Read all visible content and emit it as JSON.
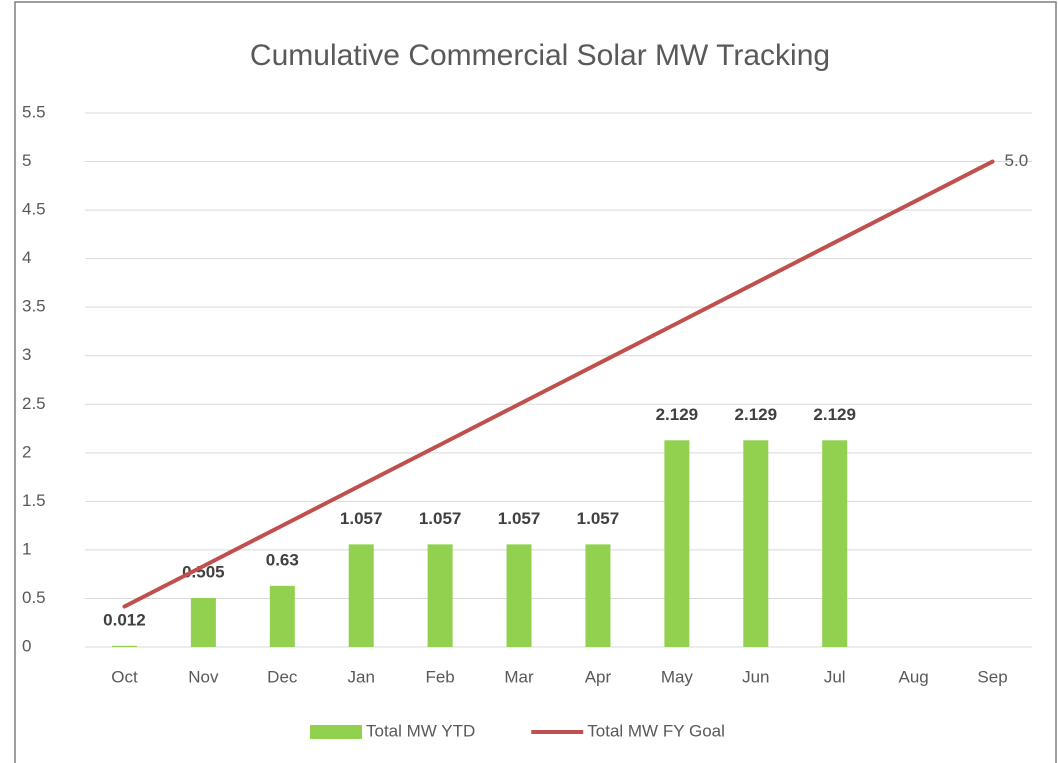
{
  "chart_data": {
    "type": "bar-line",
    "title": "Cumulative Commercial Solar MW Tracking",
    "categories": [
      "Oct",
      "Nov",
      "Dec",
      "Jan",
      "Feb",
      "Mar",
      "Apr",
      "May",
      "Jun",
      "Jul",
      "Aug",
      "Sep"
    ],
    "series": [
      {
        "name": "Total MW YTD",
        "type": "bar",
        "color": "#92d050",
        "values": [
          0.012,
          0.505,
          0.63,
          1.057,
          1.057,
          1.057,
          1.057,
          2.129,
          2.129,
          2.129,
          null,
          null
        ]
      },
      {
        "name": "Total MW FY Goal",
        "type": "line",
        "color": "#c0504d",
        "values": [
          0.417,
          0.833,
          1.25,
          1.667,
          2.083,
          2.5,
          2.917,
          3.333,
          3.75,
          4.167,
          4.583,
          5
        ],
        "value_labels": [
          null,
          null,
          null,
          null,
          null,
          null,
          null,
          null,
          null,
          null,
          null,
          "5.0"
        ]
      }
    ],
    "ylim": [
      0,
      5.5
    ],
    "yticks": [
      0,
      0.5,
      1,
      1.5,
      2,
      2.5,
      3,
      3.5,
      4,
      4.5,
      5,
      5.5
    ],
    "grid": true,
    "legend": "bottom"
  }
}
